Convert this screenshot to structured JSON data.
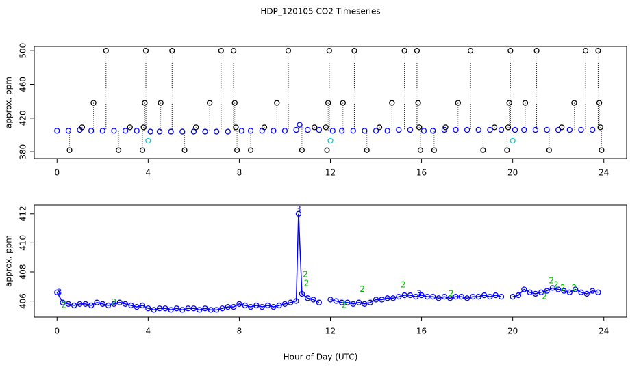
{
  "title": "HDP_120105  CO2 Timeseries",
  "xlabel": "Hour of Day (UTC)",
  "chart_data": [
    {
      "type": "scatter",
      "ylabel": "approx. ppm",
      "xlim": [
        -1,
        25
      ],
      "ylim": [
        372,
        505
      ],
      "xticks": [
        0,
        4,
        8,
        12,
        16,
        20,
        24
      ],
      "yticks": [
        380,
        420,
        460,
        500
      ],
      "series": [
        {
          "color": "#0000ff",
          "marker": "circle",
          "x": [
            0,
            0.5,
            1,
            1.5,
            2,
            2.5,
            3,
            3.5,
            4.1,
            4.5,
            5,
            5.5,
            6,
            6.5,
            7,
            7.5,
            8.1,
            8.5,
            9,
            9.5,
            10,
            10.5,
            10.65,
            11,
            11.5,
            12.1,
            12.5,
            13,
            13.5,
            14,
            14.5,
            15,
            15.5,
            16.1,
            16.5,
            17,
            17.5,
            18,
            18.5,
            19,
            19.5,
            20.1,
            20.5,
            21,
            21.5,
            22,
            22.5,
            23,
            23.5
          ],
          "values": [
            405,
            405,
            406,
            405,
            405,
            405,
            405,
            405,
            404,
            404,
            404,
            404,
            404,
            404,
            404,
            404,
            405,
            405,
            405,
            405,
            405,
            406,
            412,
            406,
            406,
            405,
            405,
            405,
            405,
            405,
            405,
            406,
            406,
            405,
            405,
            406,
            406,
            406,
            406,
            406,
            406,
            406,
            406,
            406,
            406,
            406,
            406,
            406,
            406
          ]
        },
        {
          "color": "#000000",
          "marker": "circle",
          "stems": true,
          "x": [
            0.55,
            1.1,
            1.6,
            2.15,
            2.7,
            3.2,
            3.75,
            3.8,
            3.85,
            3.9,
            4.55,
            5.05,
            5.6,
            6.1,
            6.7,
            7.2,
            7.75,
            7.8,
            7.85,
            7.9,
            8.5,
            9.1,
            9.65,
            10.15,
            10.75,
            11.3,
            11.8,
            11.85,
            11.9,
            11.95,
            12.55,
            13.05,
            13.6,
            14.15,
            14.7,
            15.25,
            15.8,
            15.85,
            15.9,
            15.95,
            16.55,
            17.05,
            17.6,
            18.15,
            18.7,
            19.2,
            19.75,
            19.8,
            19.85,
            19.9,
            20.55,
            21.05,
            21.6,
            22.15,
            22.7,
            23.2,
            23.75,
            23.8,
            23.85,
            23.9
          ],
          "values": [
            382,
            409,
            438,
            500,
            382,
            409,
            382,
            409,
            438,
            500,
            438,
            500,
            382,
            409,
            438,
            500,
            500,
            438,
            409,
            382,
            382,
            409,
            438,
            500,
            382,
            409,
            409,
            382,
            438,
            500,
            438,
            500,
            382,
            409,
            438,
            500,
            500,
            438,
            409,
            382,
            382,
            409,
            438,
            500,
            382,
            409,
            382,
            409,
            438,
            500,
            438,
            500,
            382,
            409,
            438,
            500,
            500,
            438,
            409,
            382
          ]
        },
        {
          "color": "#00cccc",
          "marker": "circle",
          "x": [
            4.0,
            12.0,
            20.0
          ],
          "values": [
            393,
            393,
            393
          ]
        }
      ]
    },
    {
      "type": "scatter",
      "ylabel": "approx. ppm",
      "xlim": [
        -1,
        25
      ],
      "ylim": [
        404.9,
        412.6
      ],
      "xticks": [
        0,
        4,
        8,
        12,
        16,
        20,
        24
      ],
      "yticks": [
        406,
        408,
        410,
        412
      ],
      "series": [
        {
          "color": "#0000ff",
          "marker": "circle",
          "line": true,
          "x": [
            0,
            0.25,
            0.5,
            0.75,
            1,
            1.25,
            1.5,
            1.75,
            2,
            2.25,
            2.5,
            2.75,
            3,
            3.25,
            3.5,
            3.75,
            4,
            4.25,
            4.5,
            4.75,
            5,
            5.25,
            5.5,
            5.75,
            6,
            6.25,
            6.5,
            6.75,
            7,
            7.25,
            7.5,
            7.75,
            8,
            8.25,
            8.5,
            8.75,
            9,
            9.25,
            9.5,
            9.75,
            10,
            10.25,
            10.5,
            10.6,
            10.75,
            11,
            11.25,
            11.5,
            11.75,
            12,
            12.25,
            12.5,
            12.75,
            13,
            13.25,
            13.5,
            13.75,
            14,
            14.25,
            14.5,
            14.75,
            15,
            15.25,
            15.5,
            15.75,
            16,
            16.25,
            16.5,
            16.75,
            17,
            17.25,
            17.5,
            17.75,
            18,
            18.25,
            18.5,
            18.75,
            19,
            19.25,
            19.5,
            19.75,
            20,
            20.25,
            20.5,
            20.75,
            21,
            21.25,
            21.5,
            21.75,
            22,
            22.25,
            22.5,
            22.75,
            23,
            23.25,
            23.5,
            23.75
          ],
          "values": [
            406.6,
            405.9,
            405.8,
            405.7,
            405.8,
            405.8,
            405.7,
            405.9,
            405.8,
            405.7,
            405.8,
            405.9,
            405.8,
            405.7,
            405.6,
            405.7,
            405.5,
            405.4,
            405.5,
            405.5,
            405.4,
            405.5,
            405.4,
            405.5,
            405.5,
            405.4,
            405.5,
            405.4,
            405.4,
            405.5,
            405.6,
            405.6,
            405.8,
            405.7,
            405.6,
            405.7,
            405.6,
            405.7,
            405.6,
            405.7,
            405.8,
            405.9,
            406.0,
            412.0,
            406.5,
            406.2,
            406.1,
            405.9,
            null,
            406.1,
            406.0,
            405.9,
            405.9,
            405.8,
            405.9,
            405.8,
            405.9,
            406.1,
            406.1,
            406.2,
            406.2,
            406.3,
            406.4,
            406.4,
            406.3,
            406.4,
            406.3,
            406.3,
            406.2,
            406.3,
            406.2,
            406.3,
            406.3,
            406.2,
            406.3,
            406.3,
            406.4,
            406.3,
            406.4,
            406.3,
            null,
            406.3,
            406.4,
            406.8,
            406.6,
            406.5,
            406.6,
            406.7,
            406.9,
            406.8,
            406.7,
            406.6,
            406.8,
            406.6,
            406.5,
            406.7,
            406.6
          ]
        },
        {
          "color": "#00bb00",
          "marker": "2",
          "x": [
            0.3,
            2.5,
            10.9,
            10.95,
            12.6,
            13.4,
            15.2,
            17.3,
            21.4,
            21.7,
            21.9,
            22.2,
            22.7
          ],
          "values": [
            405.7,
            405.9,
            407.8,
            407.2,
            405.7,
            406.8,
            407.1,
            406.5,
            406.3,
            407.4,
            407.1,
            406.9,
            406.9
          ]
        },
        {
          "color": "#0000ff",
          "marker": "3",
          "x": [
            0.1,
            10.6,
            15.9
          ],
          "values": [
            406.6,
            412.3,
            406.5
          ]
        }
      ]
    }
  ]
}
